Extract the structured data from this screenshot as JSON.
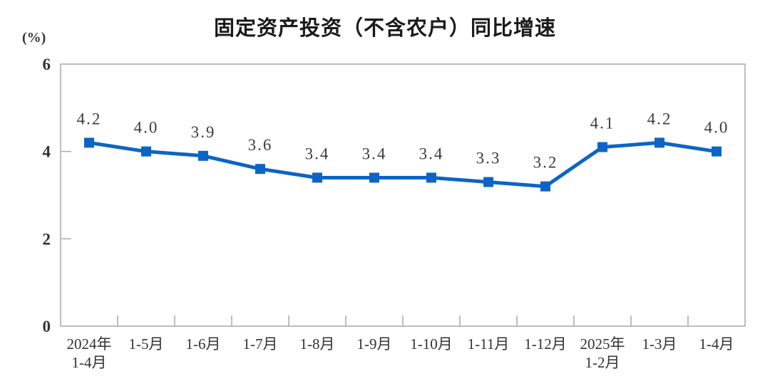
{
  "chart_data": {
    "type": "line",
    "title": "固定资产投资（不含农户）同比增速",
    "unit_label": "(%)",
    "categories": [
      {
        "lines": [
          "2024年",
          "1-4月"
        ]
      },
      {
        "lines": [
          "1-5月"
        ]
      },
      {
        "lines": [
          "1-6月"
        ]
      },
      {
        "lines": [
          "1-7月"
        ]
      },
      {
        "lines": [
          "1-8月"
        ]
      },
      {
        "lines": [
          "1-9月"
        ]
      },
      {
        "lines": [
          "1-10月"
        ]
      },
      {
        "lines": [
          "1-11月"
        ]
      },
      {
        "lines": [
          "1-12月"
        ]
      },
      {
        "lines": [
          "2025年",
          "1-2月"
        ]
      },
      {
        "lines": [
          "1-3月"
        ]
      },
      {
        "lines": [
          "1-4月"
        ]
      }
    ],
    "values": [
      4.2,
      4.0,
      3.9,
      3.6,
      3.4,
      3.4,
      3.4,
      3.3,
      3.2,
      4.1,
      4.2,
      4.0
    ],
    "data_labels": [
      "4.2",
      "4.0",
      "3.9",
      "3.6",
      "3.4",
      "3.4",
      "3.4",
      "3.3",
      "3.2",
      "4.1",
      "4.2",
      "4.0"
    ],
    "xlabel": "",
    "ylabel": "(%)",
    "ylim": [
      0,
      6
    ],
    "yticks": [
      0,
      2,
      4,
      6
    ],
    "grid": false,
    "legend": "none",
    "colors": {
      "line": "#0D64C6",
      "marker": "#0D64C6",
      "data_label": "#3C3C3C",
      "axis": "#A9A9A9",
      "tick_label": "#333333",
      "title": "#1A1A1A",
      "background": "#FFFFFF"
    }
  }
}
